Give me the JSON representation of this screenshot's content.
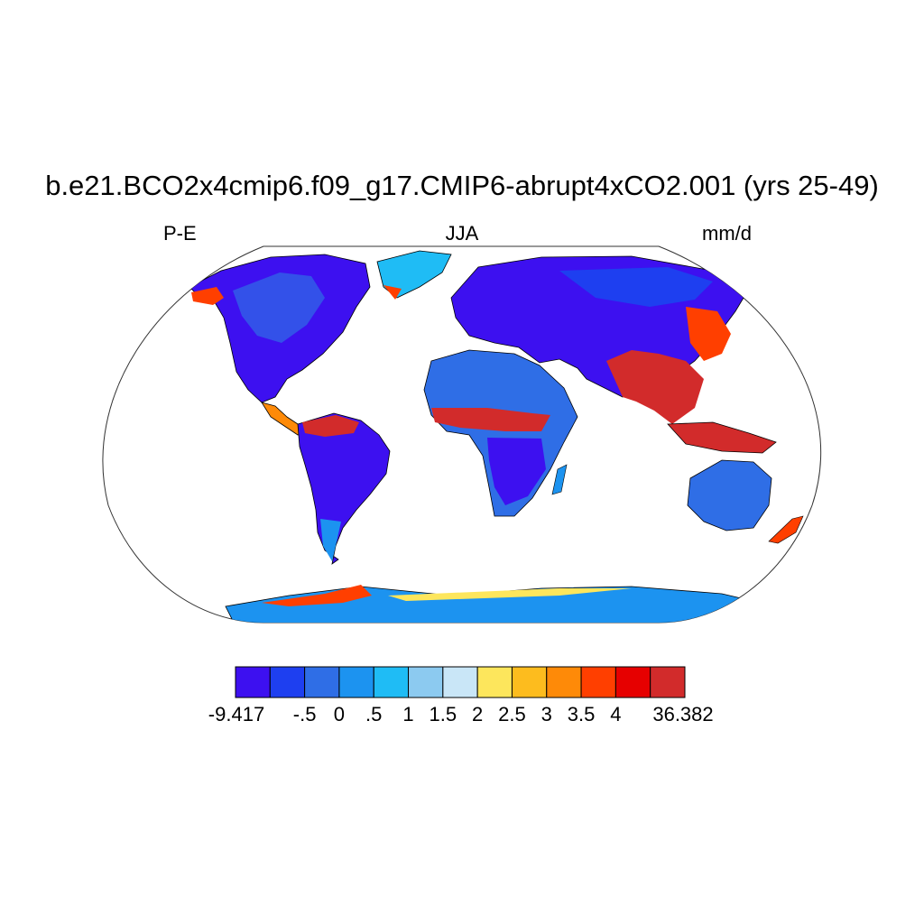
{
  "title": "b.e21.BCO2x4cmip6.f09_g17.CMIP6-abrupt4xCO2.001 (yrs 25-49)",
  "left_label": "P-E",
  "center_label": "JJA",
  "right_label": "mm/d",
  "colorbar": {
    "colors": [
      "#3d10f0",
      "#1e3ff0",
      "#2f6ee6",
      "#1c93f0",
      "#1fbcf5",
      "#8ccaf0",
      "#c9e6f7",
      "#fde65c",
      "#fdbc1e",
      "#fe8a08",
      "#ff3f00",
      "#e60000",
      "#d22b2b"
    ],
    "tick_labels": [
      "-9.417",
      "-.5",
      "0",
      ".5",
      "1",
      "1.5",
      "2",
      "2.5",
      "3",
      "3.5",
      "4",
      "36.382"
    ]
  },
  "map": {
    "projection": "robinson",
    "ocean_color": "#ffffff",
    "coastline_color": "#000000"
  }
}
